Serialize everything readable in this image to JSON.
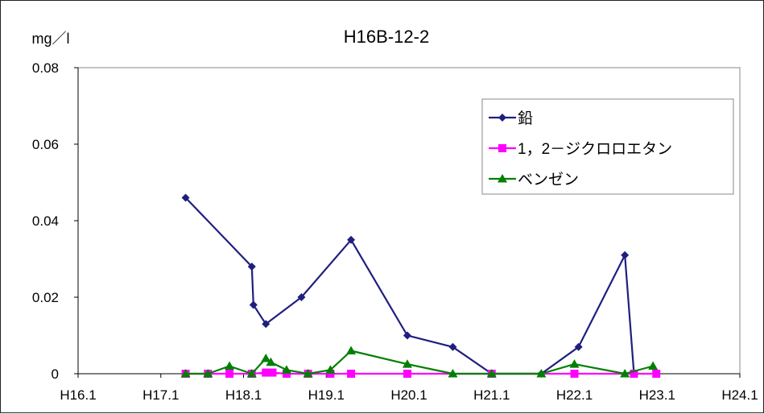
{
  "chart_data": {
    "type": "line",
    "title": "H16B-12-2",
    "unit_label": "mg／l",
    "xlabel": "",
    "ylabel": "",
    "x_ticks": [
      "H16.1",
      "H17.1",
      "H18.1",
      "H19.1",
      "H20.1",
      "H21.1",
      "H22.1",
      "H23.1",
      "H24.1"
    ],
    "xlim": [
      0,
      8
    ],
    "ylim": [
      0,
      0.08
    ],
    "y_ticks": [
      "0",
      "0.02",
      "0.04",
      "0.06",
      "0.08"
    ],
    "y_tick_values": [
      0,
      0.02,
      0.04,
      0.06,
      0.08
    ],
    "grid": false,
    "legend_position": "top-right",
    "series": [
      {
        "name": "鉛",
        "color": "#1F1F7F",
        "marker": "diamond",
        "points": [
          {
            "x": 1.3,
            "y": 0.046
          },
          {
            "x": 2.1,
            "y": 0.028
          },
          {
            "x": 2.12,
            "y": 0.018
          },
          {
            "x": 2.27,
            "y": 0.013
          },
          {
            "x": 2.7,
            "y": 0.02
          },
          {
            "x": 3.3,
            "y": 0.035
          },
          {
            "x": 3.98,
            "y": 0.01
          },
          {
            "x": 4.53,
            "y": 0.007
          },
          {
            "x": 5.0,
            "y": 0.0
          },
          {
            "x": 5.6,
            "y": 0.0
          },
          {
            "x": 6.05,
            "y": 0.007
          },
          {
            "x": 6.61,
            "y": 0.031
          },
          {
            "x": 6.72,
            "y": 0.0
          }
        ]
      },
      {
        "name": "1，2－ジクロロエタン",
        "color": "#FF00FF",
        "marker": "square",
        "points": [
          {
            "x": 1.3,
            "y": 0.0
          },
          {
            "x": 1.57,
            "y": 0.0
          },
          {
            "x": 1.83,
            "y": 0.0
          },
          {
            "x": 2.1,
            "y": 0.0
          },
          {
            "x": 2.27,
            "y": 0.0003
          },
          {
            "x": 2.35,
            "y": 0.0003
          },
          {
            "x": 2.52,
            "y": 0.0
          },
          {
            "x": 2.78,
            "y": 0.0
          },
          {
            "x": 3.05,
            "y": 0.0
          },
          {
            "x": 3.3,
            "y": 0.0
          },
          {
            "x": 3.98,
            "y": 0.0
          },
          {
            "x": 5.0,
            "y": 0.0
          },
          {
            "x": 6.0,
            "y": 0.0
          },
          {
            "x": 6.72,
            "y": 0.0
          },
          {
            "x": 6.99,
            "y": 0.0
          }
        ]
      },
      {
        "name": "ベンゼン",
        "color": "#008000",
        "marker": "triangle",
        "points": [
          {
            "x": 1.3,
            "y": 0.0
          },
          {
            "x": 1.57,
            "y": 0.0
          },
          {
            "x": 1.83,
            "y": 0.002
          },
          {
            "x": 2.1,
            "y": 0.0
          },
          {
            "x": 2.27,
            "y": 0.004
          },
          {
            "x": 2.33,
            "y": 0.003
          },
          {
            "x": 2.52,
            "y": 0.001
          },
          {
            "x": 2.78,
            "y": 0.0
          },
          {
            "x": 3.05,
            "y": 0.001
          },
          {
            "x": 3.3,
            "y": 0.006
          },
          {
            "x": 3.98,
            "y": 0.0025
          },
          {
            "x": 4.53,
            "y": 0.0
          },
          {
            "x": 5.0,
            "y": 0.0
          },
          {
            "x": 5.6,
            "y": 0.0
          },
          {
            "x": 6.0,
            "y": 0.0025
          },
          {
            "x": 6.61,
            "y": 0.0
          },
          {
            "x": 6.95,
            "y": 0.002
          }
        ]
      }
    ]
  }
}
